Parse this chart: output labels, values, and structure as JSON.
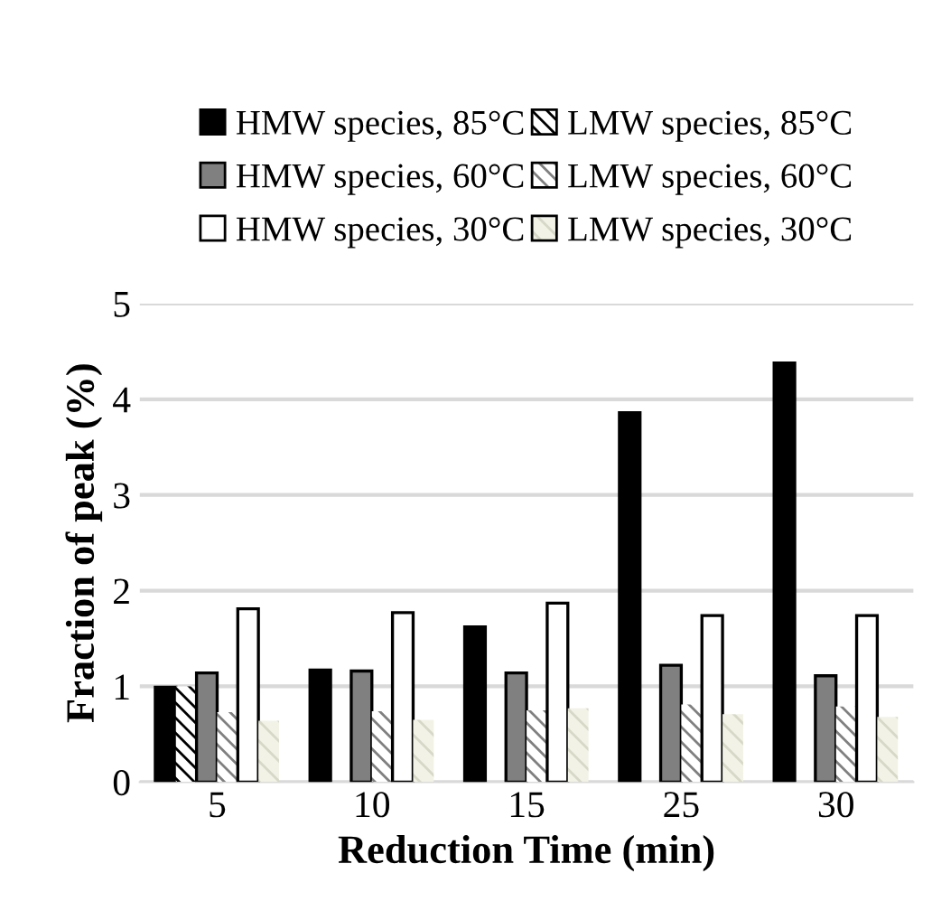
{
  "chart_data": {
    "type": "bar",
    "xlabel": "Reduction Time (min)",
    "ylabel": "Fraction of peak (%)",
    "categories": [
      "5",
      "10",
      "15",
      "25",
      "30"
    ],
    "series": [
      {
        "name": "HMW species, 85°C",
        "color": "#000000",
        "values": [
          0.99,
          1.17,
          1.62,
          3.86,
          4.38
        ]
      },
      {
        "name": "LMW species, 85°C",
        "color": "#ffffff",
        "values": [
          1.0,
          null,
          null,
          null,
          null
        ]
      },
      {
        "name": "HMW species, 60°C",
        "color": "#808080",
        "values": [
          1.14,
          1.16,
          1.14,
          1.22,
          1.11
        ]
      },
      {
        "name": "LMW species, 60°C",
        "color": "#ffffff",
        "values": [
          0.73,
          0.74,
          0.75,
          0.81,
          0.79
        ]
      },
      {
        "name": "HMW species, 30°C",
        "color": "#ffffff",
        "values": [
          1.81,
          1.77,
          1.87,
          1.74,
          1.74
        ]
      },
      {
        "name": "LMW species, 30°C",
        "color": "#f2f2e6",
        "values": [
          0.64,
          0.65,
          0.77,
          0.71,
          0.68
        ]
      }
    ],
    "ylim": [
      0,
      5
    ],
    "yticks": [
      0,
      1,
      2,
      3,
      4,
      5
    ],
    "grid": "y",
    "legend": "top"
  }
}
